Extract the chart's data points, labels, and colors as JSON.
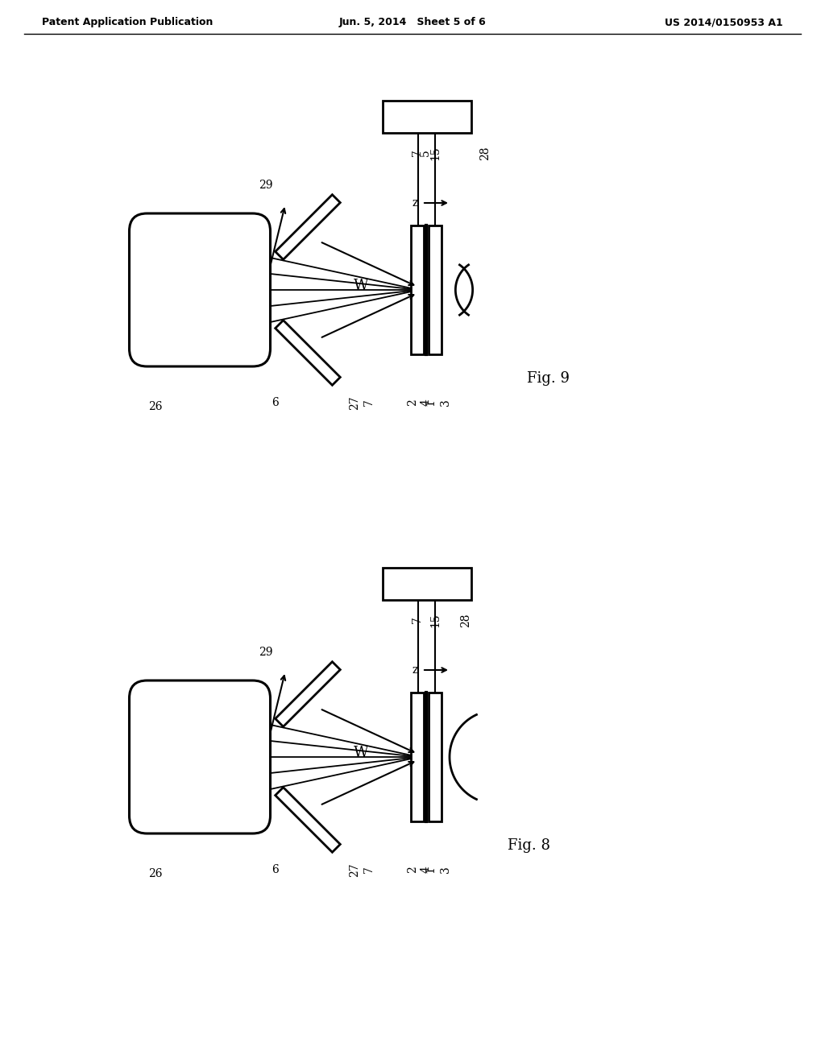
{
  "bg_color": "#ffffff",
  "line_color": "#000000",
  "header": {
    "left": "Patent Application Publication",
    "center": "Jun. 5, 2014   Sheet 5 of 6",
    "right": "US 2014/0150953 A1"
  }
}
